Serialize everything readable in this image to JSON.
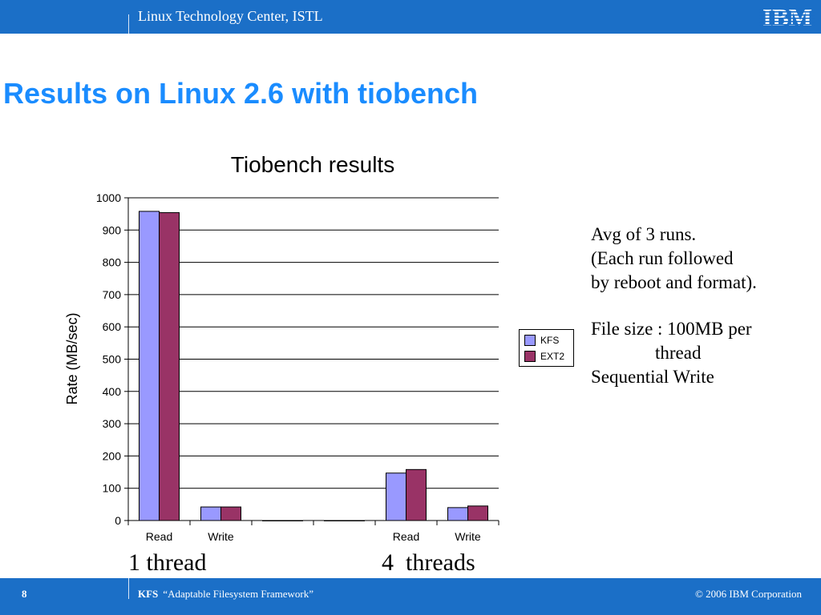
{
  "header": {
    "center_text": "Linux Technology Center, ISTL",
    "logo_text": "IBM"
  },
  "slide": {
    "title": "Results on Linux 2.6 with tiobench"
  },
  "chart_data": {
    "type": "bar",
    "title": "Tiobench results",
    "ylabel": "Rate (MB/sec)",
    "xlabel": "",
    "ylim": [
      0,
      1000
    ],
    "yticks": [
      0,
      100,
      200,
      300,
      400,
      500,
      600,
      700,
      800,
      900,
      1000
    ],
    "categories": [
      "Read",
      "Write",
      "",
      "",
      "Read",
      "Write"
    ],
    "series": [
      {
        "name": "KFS",
        "color": "#9999ff",
        "values": [
          958,
          42,
          0,
          0,
          147,
          40
        ]
      },
      {
        "name": "EXT2",
        "color": "#993366",
        "values": [
          954,
          42,
          0,
          0,
          158,
          45
        ]
      }
    ],
    "grid": true,
    "legend_position": "right"
  },
  "group_labels": {
    "left": "1 thread",
    "right": "4  threads"
  },
  "notes": {
    "line1": "Avg of 3 runs.",
    "line2": "(Each run followed",
    "line3": "by reboot and format).",
    "line4": "File size : 100MB per",
    "line5": "thread",
    "line6": "Sequential Write"
  },
  "footer": {
    "page_number": "8",
    "product_name": "KFS",
    "product_desc": "“Adaptable Filesystem Framework”",
    "copyright": "© 2006 IBM Corporation"
  },
  "colors": {
    "brand_blue": "#1b6fc7",
    "title_blue": "#1a8cff"
  }
}
